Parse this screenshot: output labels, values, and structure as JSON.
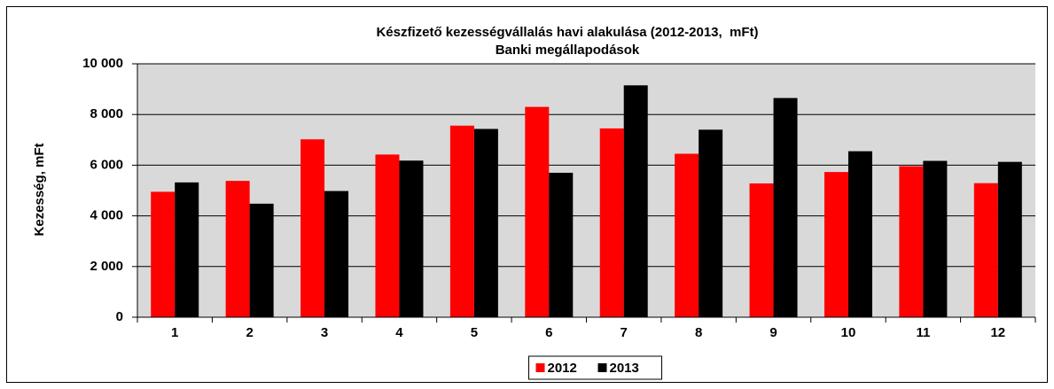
{
  "chart_data": {
    "type": "bar",
    "title": "Készfizető kezességvállalás havi alakulása (2012-2013,  mFt)",
    "subtitle": "Banki megállapodások",
    "ylabel": "Kezesség, mFt",
    "categories": [
      "1",
      "2",
      "3",
      "4",
      "5",
      "6",
      "7",
      "8",
      "9",
      "10",
      "11",
      "12"
    ],
    "series": [
      {
        "name": "2012",
        "color": "#ff0000",
        "values": [
          4950,
          5380,
          7020,
          6420,
          7560,
          8300,
          7450,
          6450,
          5280,
          5730,
          5960,
          5290
        ]
      },
      {
        "name": "2013",
        "color": "#000000",
        "values": [
          5320,
          4480,
          4980,
          6180,
          7430,
          5700,
          9150,
          7400,
          8650,
          6550,
          6170,
          6130
        ]
      }
    ],
    "ylim": [
      0,
      10000
    ],
    "yticks": [
      0,
      {
        "value": 2000,
        "label": "2 000"
      },
      {
        "value": 4000,
        "label": "4 000"
      },
      {
        "value": 6000,
        "label": "6 000"
      },
      {
        "value": 8000,
        "label": "8 000"
      },
      {
        "value": 10000,
        "label": "10 000"
      }
    ],
    "grid": true,
    "legend": "bottom"
  }
}
